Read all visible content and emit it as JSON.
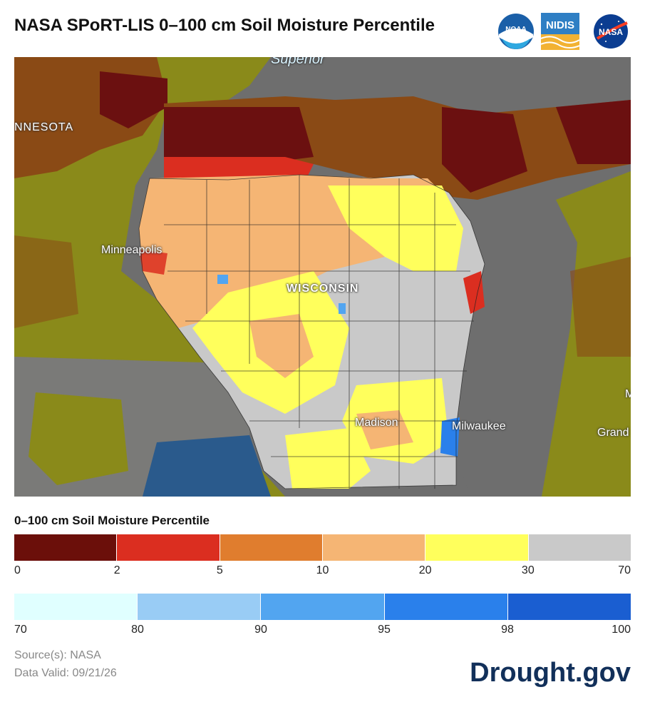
{
  "header": {
    "title": "NASA SPoRT-LIS 0–100 cm Soil Moisture Percentile",
    "logos": [
      {
        "name": "noaa-logo",
        "text": "NOAA",
        "color": "#1a5fa8"
      },
      {
        "name": "nidis-logo",
        "text": "NIDIS",
        "color": "#2f7fc4"
      },
      {
        "name": "nasa-logo",
        "text": "NASA",
        "color": "#0b3d91"
      }
    ]
  },
  "map": {
    "labels": {
      "superior": "Superior",
      "minnesota": "NNESOTA",
      "minneapolis": "Minneapolis",
      "wisconsin": "WISCONSIN",
      "madison": "Madison",
      "milwaukee": "Milwaukee",
      "grand": "Grand",
      "edge": "M"
    },
    "colors": {
      "lake": "#6e6e6e",
      "land_dark_red": "#6b1010",
      "land_brown": "#8a4a15",
      "land_olive": "#8a8a1a",
      "land_gray": "#7a7a78",
      "wet_blue": "#2a5a8c"
    }
  },
  "legend": {
    "title": "0–100 cm Soil Moisture Percentile",
    "dry": {
      "colors": [
        "#6b0f0a",
        "#db2e20",
        "#e07d2e",
        "#f5b574",
        "#ffff5c",
        "#c9c9c9"
      ],
      "ticks": [
        "0",
        "2",
        "5",
        "10",
        "20",
        "30",
        "70"
      ]
    },
    "wet": {
      "colors": [
        "#e0ffff",
        "#99ccf5",
        "#52a5f0",
        "#2a80eb",
        "#1a5ed1"
      ],
      "ticks": [
        "70",
        "80",
        "90",
        "95",
        "98",
        "100"
      ]
    }
  },
  "footer": {
    "source": "Source(s): NASA",
    "valid": "Data Valid: 09/21/26",
    "brand": "Drought.gov"
  }
}
